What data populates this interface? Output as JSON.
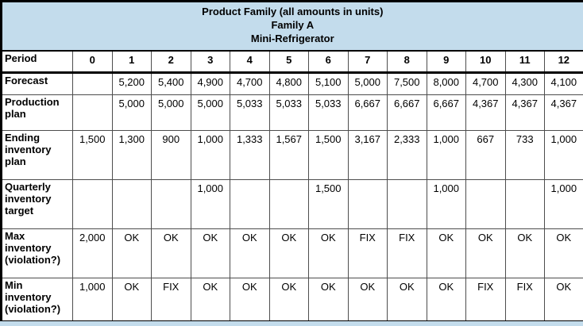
{
  "header": {
    "lines": [
      "Product Family (all amounts in units)",
      "Family A",
      "Mini-Refrigerator"
    ]
  },
  "table": {
    "period_columns": [
      "0",
      "1",
      "2",
      "3",
      "4",
      "5",
      "6",
      "7",
      "8",
      "9",
      "10",
      "11",
      "12"
    ],
    "rows": [
      {
        "label": "Period",
        "bold_values": true,
        "values": [
          "0",
          "1",
          "2",
          "3",
          "4",
          "5",
          "6",
          "7",
          "8",
          "9",
          "10",
          "11",
          "12"
        ]
      },
      {
        "label": "Forecast",
        "bold_values": false,
        "values": [
          "",
          "5,200",
          "5,400",
          "4,900",
          "4,700",
          "4,800",
          "5,100",
          "5,000",
          "7,500",
          "8,000",
          "4,700",
          "4,300",
          "4,100"
        ]
      },
      {
        "label": "Production plan",
        "bold_values": false,
        "values": [
          "",
          "5,000",
          "5,000",
          "5,000",
          "5,033",
          "5,033",
          "5,033",
          "6,667",
          "6,667",
          "6,667",
          "4,367",
          "4,367",
          "4,367"
        ]
      },
      {
        "label": "Ending inventory plan",
        "bold_values": false,
        "values": [
          "1,500",
          "1,300",
          "900",
          "1,000",
          "1,333",
          "1,567",
          "1,500",
          "3,167",
          "2,333",
          "1,000",
          "667",
          "733",
          "1,000"
        ]
      },
      {
        "label": "Quarterly inventory target",
        "bold_values": false,
        "values": [
          "",
          "",
          "",
          "1,000",
          "",
          "",
          "1,500",
          "",
          "",
          "1,000",
          "",
          "",
          "1,000"
        ]
      },
      {
        "label": "Max inventory (violation?)",
        "bold_values": false,
        "values": [
          "2,000",
          "OK",
          "OK",
          "OK",
          "OK",
          "OK",
          "OK",
          "FIX",
          "FIX",
          "OK",
          "OK",
          "OK",
          "OK"
        ]
      },
      {
        "label": "Min inventory (violation?)",
        "bold_values": false,
        "values": [
          "1,000",
          "OK",
          "FIX",
          "OK",
          "OK",
          "OK",
          "OK",
          "OK",
          "OK",
          "OK",
          "FIX",
          "FIX",
          "OK"
        ]
      }
    ]
  },
  "colors": {
    "header_bg": "#C3DCEC",
    "grid_line": "#4d4d4d",
    "outer_border": "#000000",
    "text": "#000000"
  }
}
